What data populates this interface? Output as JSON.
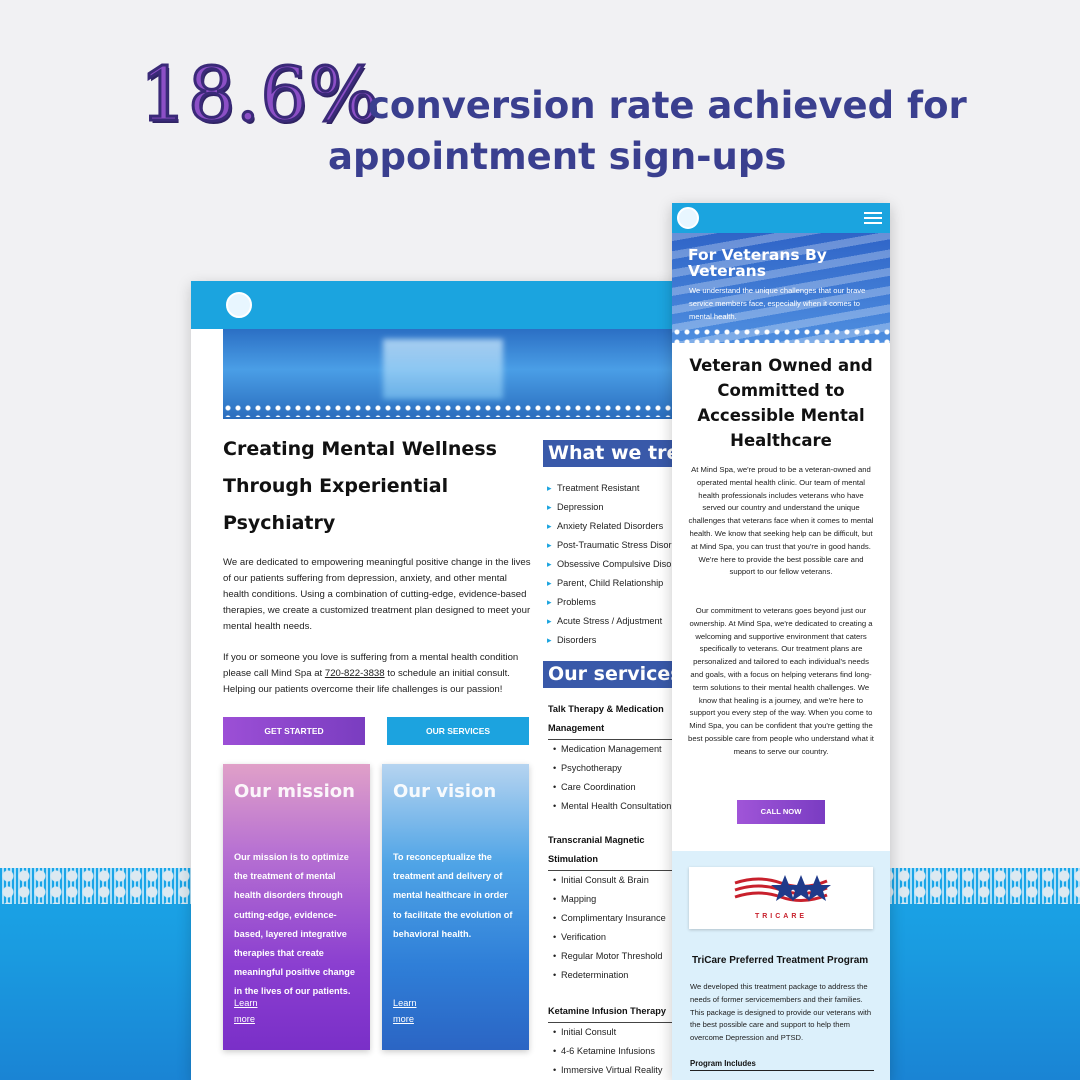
{
  "headline": {
    "stat": "18.6%",
    "line1": "conversion rate achieved for",
    "line2": "appointment sign-ups"
  },
  "desktop": {
    "hero_title": "Creating Mental Wellness Through Experiential Psychiatry",
    "para1": "We are dedicated to empowering meaningful positive change in the  lives of our patients suffering from depression, anxiety, and other  mental health conditions. Using a combination of cutting-edge,  evidence-based therapies, we create a customized treatment plan designed to meet your mental health needs.",
    "para2_before": "If you or someone you love is suffering from a mental health condition please call Mind Spa at ",
    "phone": "720-822-3838",
    "para2_after": " to schedule an initial consult. Helping our patients overcome their life challenges is our passion!",
    "buttons": {
      "get_started": "GET STARTED",
      "our_services": "OUR SERVICES"
    },
    "mission": {
      "title": "Our mission",
      "text": "Our mission is to optimize the treatment of  mental health disorders through cutting-edge, evidence-based, layered  integrative therapies that create meaningful positive change in the  lives of our patients.",
      "link": "Learn more"
    },
    "vision": {
      "title": "Our vision",
      "text": "To reconceptualize the treatment and delivery of mental healthcare in order to facilitate the evolution of behavioral health.",
      "link": "Learn more"
    },
    "what_we_treat": {
      "title": "What we tre",
      "items": [
        "Treatment Resistant",
        "Depression",
        "Anxiety Related Disorders",
        "Post-Traumatic Stress Disor",
        "Obsessive Compulsive Disor",
        "Parent, Child Relationship",
        "Problems",
        "Acute Stress / Adjustment",
        "Disorders"
      ]
    },
    "our_services": {
      "title": "Our services",
      "groups": [
        {
          "heading": "Talk Therapy & Medication Management",
          "items": [
            "Medication Management",
            "Psychotherapy",
            "Care Coordination",
            "Mental Health Consultation"
          ]
        },
        {
          "heading": "Transcranial Magnetic Stimulation",
          "items": [
            "Initial Consult & Brain",
            "Mapping",
            "Complimentary Insurance",
            "Verification",
            "Regular Motor Threshold",
            "Redetermination"
          ]
        },
        {
          "heading": "Ketamine Infusion Therapy",
          "items": [
            "Initial Consult",
            "4-6 Ketamine Infusions",
            "Immersive Virtual Reality"
          ]
        }
      ]
    }
  },
  "mobile": {
    "banner_title": "For Veterans By Veterans",
    "banner_sub": "We understand the unique challenges  that our brave service members face, especially when it comes to mental  health.",
    "title": "Veteran Owned and Committed to Accessible Mental Healthcare",
    "para1": "At Mind Spa, we're proud to be a veteran-owned and operated mental  health clinic. Our team of mental health professionals includes veterans who have served our country and understand the unique challenges that  veterans face when it comes to mental health. We know that seeking help  can be difficult, but at Mind Spa, you can trust that you're in good  hands. We're here to provide the best possible care and support to our fellow veterans.",
    "para2": "Our commitment to veterans goes beyond just our ownership. At Mind Spa, we're dedicated to creating a welcoming and  supportive environment that caters specifically to veterans. Our  treatment plans are personalized and tailored to each individual's needs and goals, with a focus on helping veterans find long-term solutions to their mental health challenges. We know that healing is a journey, and  we're here to support you every step of the way. When you come to Mind  Spa, you can be confident that you're getting the best possible care  from people who understand what it means to serve our country.",
    "call_button": "CALL NOW",
    "tricare_logo": "TRICARE",
    "tricare_heading": "TriCare Preferred Treatment Program",
    "tricare_para": "We developed this treatment package to address the needs of former  servicemembers and their families. This package is designed to provide  our veterans with the best possible care and support to help them  overcome Depression and PTSD.",
    "program_includes": "Program Includes"
  }
}
